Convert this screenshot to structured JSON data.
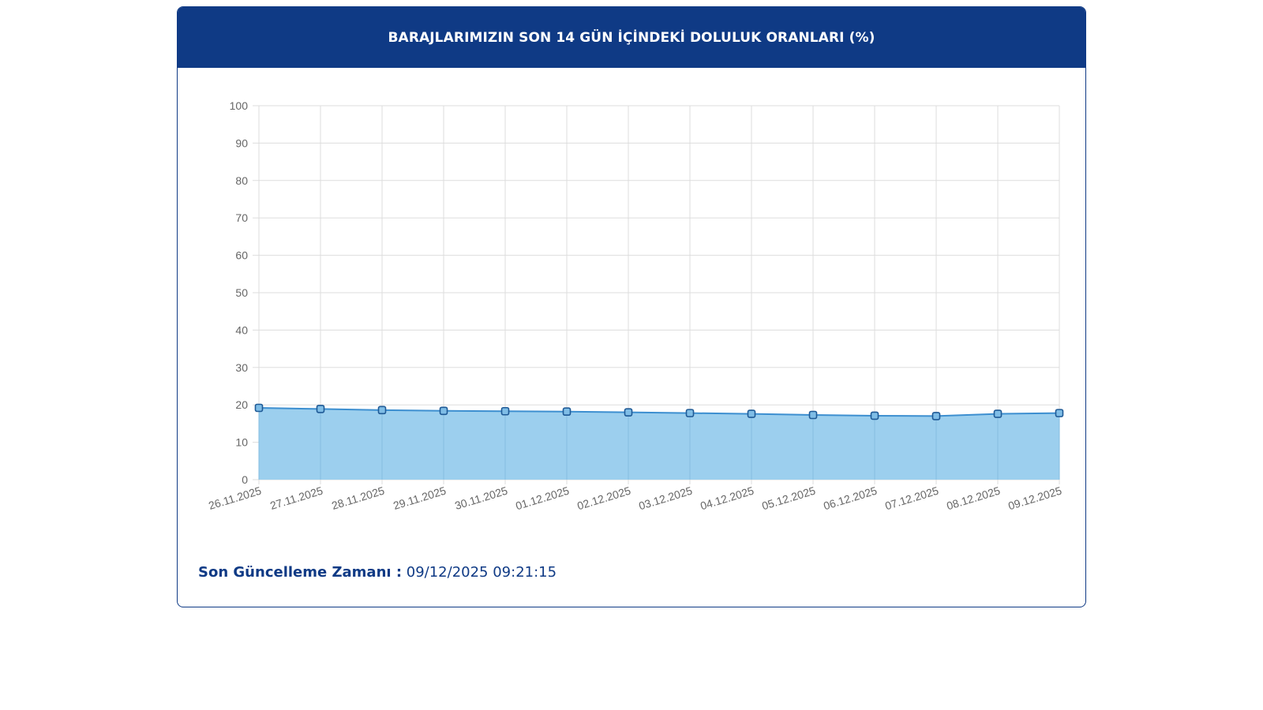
{
  "header": {
    "title": "BARAJLARIMIZIN SON 14 GÜN İÇİNDEKİ DOLULUK ORANLARI (%)"
  },
  "footer": {
    "updated_label": "Son Güncelleme Zamanı :",
    "updated_value": "09/12/2025 09:21:15"
  },
  "colors": {
    "header_bg": "#0f3a85",
    "fill": "#9ccfee",
    "line": "#3d8fd0",
    "point_stroke": "#1f5a96",
    "grid": "#dddddd"
  },
  "chart_data": {
    "type": "area",
    "title": "BARAJLARIMIZIN SON 14 GÜN İÇİNDEKİ DOLULUK ORANLARI (%)",
    "xlabel": "",
    "ylabel": "",
    "ylim": [
      0,
      100
    ],
    "yticks": [
      0,
      10,
      20,
      30,
      40,
      50,
      60,
      70,
      80,
      90,
      100
    ],
    "grid": true,
    "legend": "none",
    "categories": [
      "26.11.2025",
      "27.11.2025",
      "28.11.2025",
      "29.11.2025",
      "30.11.2025",
      "01.12.2025",
      "02.12.2025",
      "03.12.2025",
      "04.12.2025",
      "05.12.2025",
      "06.12.2025",
      "07.12.2025",
      "08.12.2025",
      "09.12.2025"
    ],
    "series": [
      {
        "values": [
          19.2,
          18.9,
          18.6,
          18.4,
          18.3,
          18.2,
          18.0,
          17.8,
          17.6,
          17.3,
          17.1,
          17.0,
          17.6,
          17.8
        ]
      }
    ]
  }
}
